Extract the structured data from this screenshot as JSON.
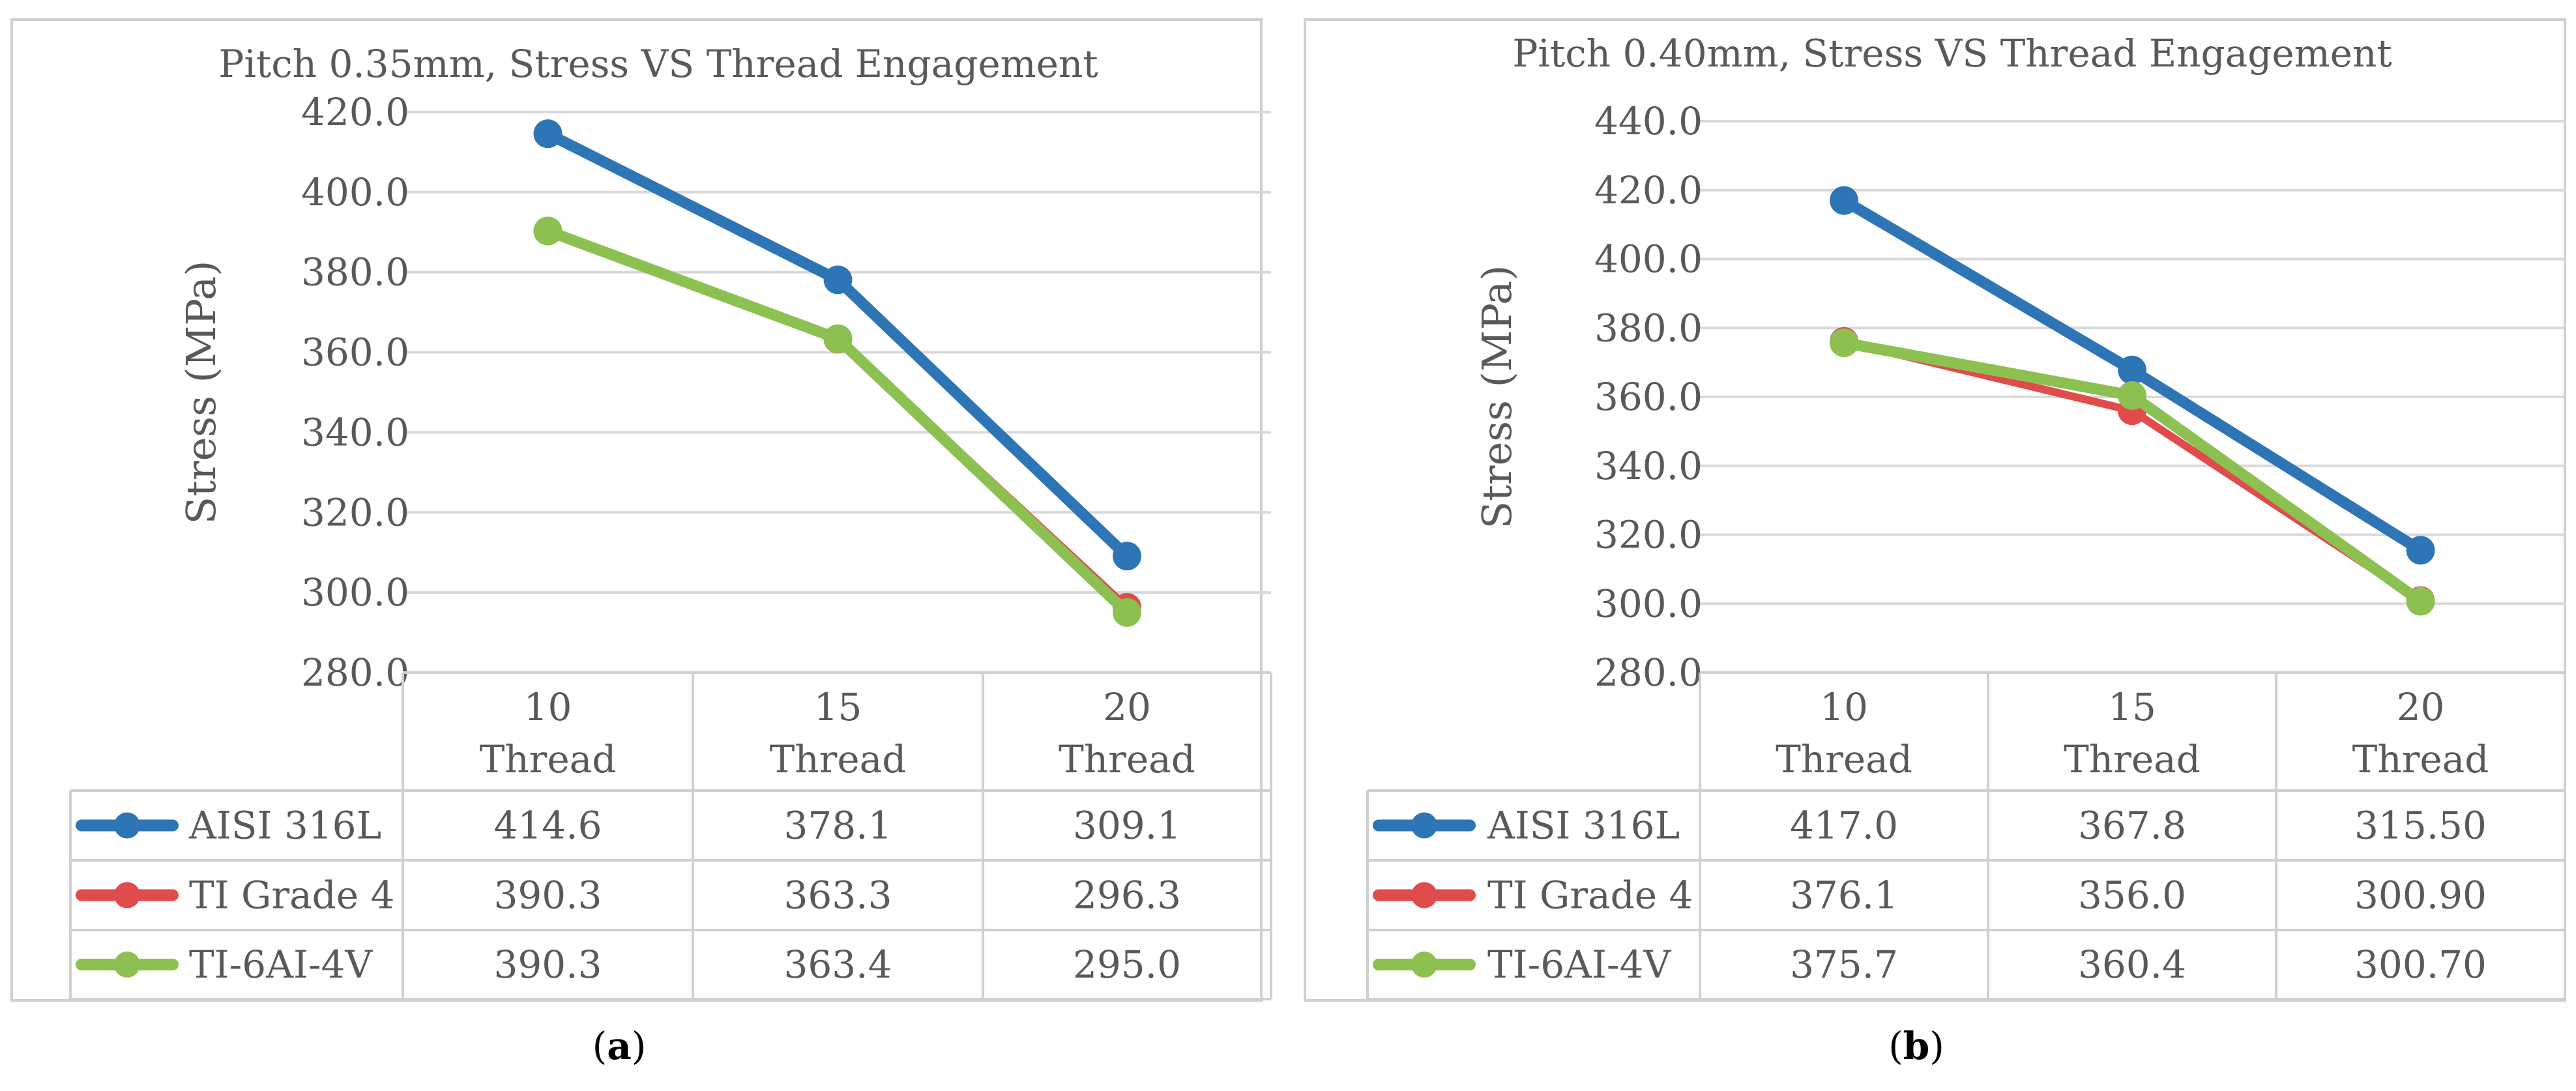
{
  "chart_data": [
    {
      "type": "line",
      "title": "Pitch 0.35mm, Stress VS Thread Engagement",
      "ylabel": "Stress (MPa)",
      "xlabel": "",
      "ylim": [
        280,
        420
      ],
      "ytick_step": 20,
      "ytick_labels": [
        "280.0",
        "300.0",
        "320.0",
        "340.0",
        "360.0",
        "380.0",
        "400.0",
        "420.0"
      ],
      "categories": [
        {
          "num": "10",
          "word": "Thread"
        },
        {
          "num": "15",
          "word": "Thread"
        },
        {
          "num": "20",
          "word": "Thread"
        }
      ],
      "grid": true,
      "series": [
        {
          "name": "AISI 316L",
          "color": "#2E75B6",
          "values": [
            414.6,
            378.1,
            309.1
          ],
          "labels": [
            "414.6",
            "378.1",
            "309.1"
          ]
        },
        {
          "name": "TI Grade 4",
          "color": "#E04B4B",
          "values": [
            390.3,
            363.3,
            296.3
          ],
          "labels": [
            "390.3",
            "363.3",
            "296.3"
          ]
        },
        {
          "name": "TI-6AI-4V",
          "color": "#8CC152",
          "values": [
            390.3,
            363.4,
            295.0
          ],
          "labels": [
            "390.3",
            "363.4",
            "295.0"
          ]
        }
      ],
      "caption_open": "(",
      "caption_letter": "a",
      "caption_close": ")"
    },
    {
      "type": "line",
      "title": "Pitch 0.40mm, Stress VS Thread Engagement",
      "ylabel": "Stress (MPa)",
      "xlabel": "",
      "ylim": [
        280,
        440
      ],
      "ytick_step": 20,
      "ytick_labels": [
        "280.0",
        "300.0",
        "320.0",
        "340.0",
        "360.0",
        "380.0",
        "400.0",
        "420.0",
        "440.0"
      ],
      "categories": [
        {
          "num": "10",
          "word": "Thread"
        },
        {
          "num": "15",
          "word": "Thread"
        },
        {
          "num": "20",
          "word": "Thread"
        }
      ],
      "grid": true,
      "series": [
        {
          "name": "AISI 316L",
          "color": "#2E75B6",
          "values": [
            417.0,
            367.8,
            315.5
          ],
          "labels": [
            "417.0",
            "367.8",
            "315.50"
          ]
        },
        {
          "name": "TI Grade 4",
          "color": "#E04B4B",
          "values": [
            376.1,
            356.0,
            300.9
          ],
          "labels": [
            "376.1",
            "356.0",
            "300.90"
          ]
        },
        {
          "name": "TI-6AI-4V",
          "color": "#8CC152",
          "values": [
            375.7,
            360.4,
            300.7
          ],
          "labels": [
            "375.7",
            "360.4",
            "300.70"
          ]
        }
      ],
      "caption_open": "(",
      "caption_letter": "b",
      "caption_close": ")"
    }
  ]
}
